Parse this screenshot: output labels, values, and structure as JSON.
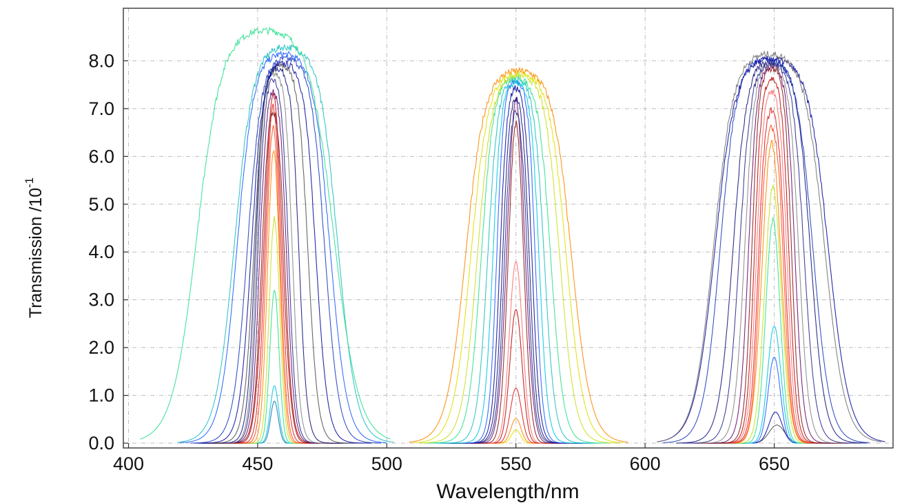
{
  "chart_data": {
    "type": "line",
    "xlabel": "Wavelength/nm",
    "ylabel": "Transmission /10",
    "ylabel_exponent": "-1",
    "xlim": [
      398,
      696
    ],
    "ylim": [
      -0.1,
      9.1
    ],
    "xticks": [
      400,
      450,
      500,
      550,
      600,
      650
    ],
    "xtick_labels": [
      "400",
      "450",
      "500",
      "550",
      "600",
      "650"
    ],
    "yticks": [
      0,
      1,
      2,
      3,
      4,
      5,
      6,
      7,
      8
    ],
    "ytick_labels": [
      "0.0",
      "1.0",
      "2.0",
      "3.0",
      "4.0",
      "5.0",
      "6.0",
      "7.0",
      "8.0"
    ],
    "grid": true,
    "legend": "none",
    "series": [
      {
        "group": 450,
        "center": 456.5,
        "fwhm": 3.5,
        "peak": 0.88,
        "color": "#1f77b4"
      },
      {
        "group": 450,
        "center": 456.5,
        "fwhm": 3.8,
        "peak": 1.2,
        "color": "#00c8e0"
      },
      {
        "group": 450,
        "center": 456.5,
        "fwhm": 4.2,
        "peak": 3.2,
        "color": "#30e090"
      },
      {
        "group": 450,
        "center": 456.5,
        "fwhm": 4.8,
        "peak": 4.7,
        "color": "#c8e020"
      },
      {
        "group": 450,
        "center": 456.2,
        "fwhm": 5.5,
        "peak": 6.1,
        "color": "#ff8800"
      },
      {
        "group": 450,
        "center": 456.0,
        "fwhm": 6.2,
        "peak": 6.6,
        "color": "#ff5020"
      },
      {
        "group": 450,
        "center": 456.0,
        "fwhm": 7.0,
        "peak": 7.05,
        "color": "#e02020"
      },
      {
        "group": 450,
        "center": 456.0,
        "fwhm": 8.0,
        "peak": 7.3,
        "color": "#c01010"
      },
      {
        "group": 450,
        "center": 456.0,
        "fwhm": 9.0,
        "peak": 7.5,
        "color": "#8b1a1a"
      },
      {
        "group": 450,
        "center": 456.0,
        "fwhm": 10.5,
        "peak": 7.7,
        "color": "#6a1070"
      },
      {
        "group": 450,
        "center": 456.0,
        "fwhm": 12.0,
        "peak": 7.8,
        "color": "#303090"
      },
      {
        "group": 450,
        "center": 456.5,
        "fwhm": 14.0,
        "peak": 7.85,
        "color": "#888888"
      },
      {
        "group": 450,
        "center": 457.5,
        "fwhm": 17.0,
        "peak": 7.9,
        "color": "#1a1a80"
      },
      {
        "group": 450,
        "center": 459.0,
        "fwhm": 21.0,
        "peak": 7.95,
        "color": "#555555"
      },
      {
        "group": 450,
        "center": 460.0,
        "fwhm": 25.0,
        "peak": 8.0,
        "color": "#1010a0"
      },
      {
        "group": 450,
        "center": 461.0,
        "fwhm": 30.0,
        "peak": 8.1,
        "color": "#2040c0"
      },
      {
        "group": 450,
        "center": 460.0,
        "fwhm": 36.0,
        "peak": 8.2,
        "color": "#2060ff"
      },
      {
        "group": 450,
        "center": 461.0,
        "fwhm": 40.0,
        "peak": 8.35,
        "color": "#20c0c0"
      },
      {
        "group": 450,
        "center": 453.0,
        "fwhm": 53.0,
        "peak": 8.7,
        "color": "#30e090"
      },
      {
        "group": 550,
        "center": 550.0,
        "fwhm": 4.0,
        "peak": 0.28,
        "color": "#e0e000"
      },
      {
        "group": 550,
        "center": 550.0,
        "fwhm": 4.5,
        "peak": 0.52,
        "color": "#ff8800"
      },
      {
        "group": 550,
        "center": 550.0,
        "fwhm": 5.0,
        "peak": 1.15,
        "color": "#e02020"
      },
      {
        "group": 550,
        "center": 550.0,
        "fwhm": 5.5,
        "peak": 2.8,
        "color": "#c01010"
      },
      {
        "group": 550,
        "center": 550.0,
        "fwhm": 6.0,
        "peak": 3.8,
        "color": "#ff7070"
      },
      {
        "group": 550,
        "center": 550.0,
        "fwhm": 6.8,
        "peak": 6.7,
        "color": "#8b1a1a"
      },
      {
        "group": 550,
        "center": 550.0,
        "fwhm": 7.8,
        "peak": 7.2,
        "color": "#6a1070"
      },
      {
        "group": 550,
        "center": 550.0,
        "fwhm": 9.0,
        "peak": 7.5,
        "color": "#303090"
      },
      {
        "group": 550,
        "center": 550.0,
        "fwhm": 10.5,
        "peak": 7.55,
        "color": "#1a1a80"
      },
      {
        "group": 550,
        "center": 550.0,
        "fwhm": 12.5,
        "peak": 7.6,
        "color": "#1010a0"
      },
      {
        "group": 550,
        "center": 550.0,
        "fwhm": 15.0,
        "peak": 7.65,
        "color": "#2060ff"
      },
      {
        "group": 550,
        "center": 550.0,
        "fwhm": 18.0,
        "peak": 7.6,
        "color": "#00c8e0"
      },
      {
        "group": 550,
        "center": 550.0,
        "fwhm": 22.0,
        "peak": 7.65,
        "color": "#20c0c0"
      },
      {
        "group": 550,
        "center": 550.0,
        "fwhm": 27.0,
        "peak": 7.7,
        "color": "#30e090"
      },
      {
        "group": 550,
        "center": 551.0,
        "fwhm": 32.0,
        "peak": 7.75,
        "color": "#c8e020"
      },
      {
        "group": 550,
        "center": 551.0,
        "fwhm": 37.0,
        "peak": 7.8,
        "color": "#e0e000"
      },
      {
        "group": 550,
        "center": 551.0,
        "fwhm": 41.0,
        "peak": 7.85,
        "color": "#ff8800"
      },
      {
        "group": 650,
        "center": 651.0,
        "fwhm": 7.0,
        "peak": 0.38,
        "color": "#555555"
      },
      {
        "group": 650,
        "center": 650.5,
        "fwhm": 6.0,
        "peak": 0.65,
        "color": "#1010a0"
      },
      {
        "group": 650,
        "center": 650.0,
        "fwhm": 5.5,
        "peak": 1.8,
        "color": "#2060ff"
      },
      {
        "group": 650,
        "center": 650.0,
        "fwhm": 6.0,
        "peak": 2.45,
        "color": "#00c8e0"
      },
      {
        "group": 650,
        "center": 649.5,
        "fwhm": 6.5,
        "peak": 4.65,
        "color": "#30e090"
      },
      {
        "group": 650,
        "center": 649.5,
        "fwhm": 7.5,
        "peak": 5.35,
        "color": "#c8e020"
      },
      {
        "group": 650,
        "center": 649.0,
        "fwhm": 8.5,
        "peak": 6.3,
        "color": "#ff8800"
      },
      {
        "group": 650,
        "center": 649.0,
        "fwhm": 9.5,
        "peak": 7.05,
        "color": "#ff5020"
      },
      {
        "group": 650,
        "center": 649.0,
        "fwhm": 10.5,
        "peak": 7.3,
        "color": "#e02020"
      },
      {
        "group": 650,
        "center": 649.0,
        "fwhm": 12.0,
        "peak": 7.55,
        "color": "#ff7070"
      },
      {
        "group": 650,
        "center": 649.0,
        "fwhm": 13.5,
        "peak": 7.75,
        "color": "#c01010"
      },
      {
        "group": 650,
        "center": 649.0,
        "fwhm": 15.5,
        "peak": 7.9,
        "color": "#8b1a1a"
      },
      {
        "group": 650,
        "center": 649.0,
        "fwhm": 18.0,
        "peak": 7.95,
        "color": "#6a1070"
      },
      {
        "group": 650,
        "center": 649.0,
        "fwhm": 21.0,
        "peak": 8.0,
        "color": "#888888"
      },
      {
        "group": 650,
        "center": 649.0,
        "fwhm": 25.0,
        "peak": 8.0,
        "color": "#303090"
      },
      {
        "group": 650,
        "center": 649.0,
        "fwhm": 30.0,
        "peak": 8.05,
        "color": "#1a1a80"
      },
      {
        "group": 650,
        "center": 647.0,
        "fwhm": 36.0,
        "peak": 8.1,
        "color": "#2040c0"
      },
      {
        "group": 650,
        "center": 649.0,
        "fwhm": 44.0,
        "peak": 8.1,
        "color": "#1010a0"
      },
      {
        "group": 650,
        "center": 648.0,
        "fwhm": 43.0,
        "peak": 8.2,
        "color": "#777777"
      }
    ]
  }
}
